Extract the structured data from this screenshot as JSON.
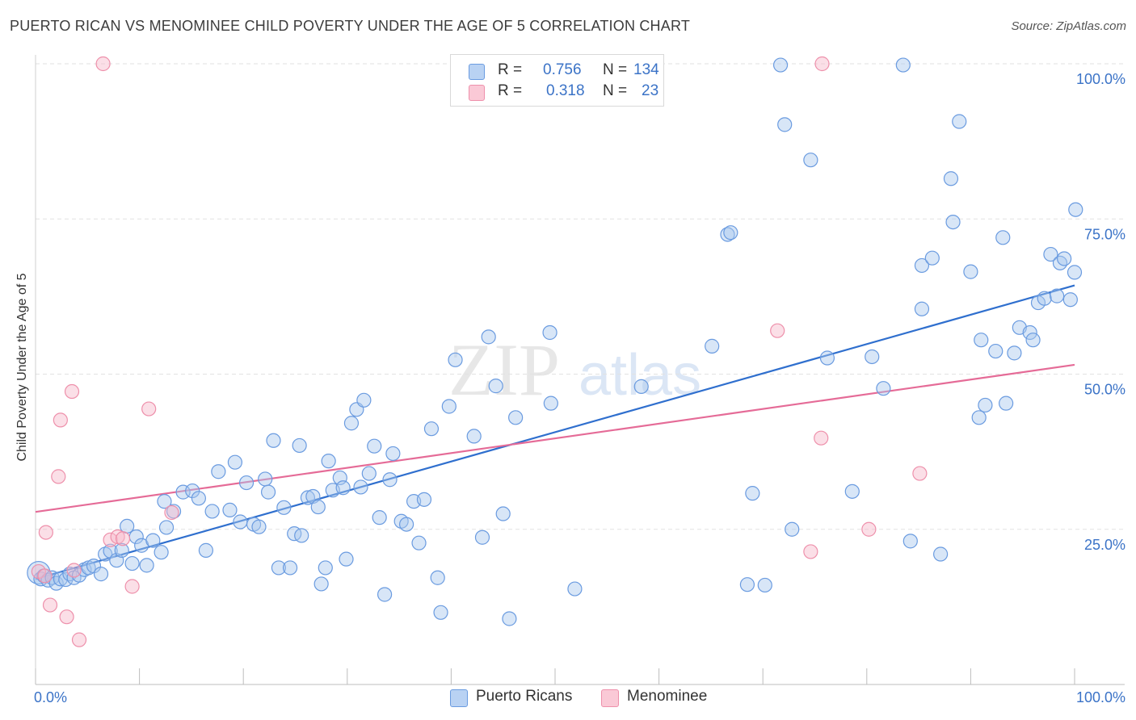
{
  "title": "PUERTO RICAN VS MENOMINEE CHILD POVERTY UNDER THE AGE OF 5 CORRELATION CHART",
  "source": "Source: ZipAtlas.com",
  "watermark": {
    "part1": "ZIP",
    "part2": "atlas"
  },
  "legend": {
    "r_label": "R =",
    "n_label": "N =",
    "series": [
      {
        "name": "Puerto Ricans",
        "r": "0.756",
        "n": "134",
        "color": "#a9c7ee"
      },
      {
        "name": "Menominee",
        "r": "0.318",
        "n": "23",
        "color": "#f6b8c9"
      }
    ]
  },
  "chart_data": {
    "type": "scatter",
    "title": "PUERTO RICAN VS MENOMINEE CHILD POVERTY UNDER THE AGE OF 5 CORRELATION CHART",
    "xlabel": "",
    "ylabel": "Child Poverty Under the Age of 5",
    "xlim": [
      0,
      100
    ],
    "ylim": [
      0,
      100
    ],
    "x_tick_labels": [
      "0.0%",
      "100.0%"
    ],
    "y_tick_labels": [
      "25.0%",
      "50.0%",
      "75.0%",
      "100.0%"
    ],
    "y_ticks": [
      25,
      50,
      75,
      100
    ],
    "grid": true,
    "legend_position": "top-center",
    "colors": {
      "blue_stroke": "#6a9be0",
      "blue_fill": "#a9c7ee",
      "blue_line": "#2f6fce",
      "pink_stroke": "#ee90ab",
      "pink_fill": "#f6b8c9",
      "pink_line": "#e56b97",
      "tick_text": "#3b73c7"
    },
    "series": [
      {
        "name": "Puerto Ricans",
        "r": 0.756,
        "n": 134,
        "trend": {
          "x": [
            0,
            100
          ],
          "y": [
            17.0,
            64.3
          ]
        },
        "points": [
          [
            0.3,
            18.0
          ],
          [
            0.5,
            17.0
          ],
          [
            0.8,
            17.5
          ],
          [
            1.2,
            16.8
          ],
          [
            1.6,
            17.2
          ],
          [
            2.0,
            16.3
          ],
          [
            2.4,
            17.0
          ],
          [
            2.9,
            16.9
          ],
          [
            3.3,
            17.8
          ],
          [
            3.7,
            17.2
          ],
          [
            4.2,
            17.6
          ],
          [
            4.7,
            18.5
          ],
          [
            5.1,
            18.8
          ],
          [
            5.6,
            19.1
          ],
          [
            6.3,
            17.8
          ],
          [
            6.7,
            21.0
          ],
          [
            7.2,
            21.5
          ],
          [
            7.8,
            20.0
          ],
          [
            8.3,
            21.6
          ],
          [
            8.8,
            25.5
          ],
          [
            9.3,
            19.5
          ],
          [
            9.7,
            23.8
          ],
          [
            10.2,
            22.4
          ],
          [
            10.7,
            19.2
          ],
          [
            11.3,
            23.2
          ],
          [
            12.1,
            21.3
          ],
          [
            12.6,
            25.3
          ],
          [
            12.4,
            29.5
          ],
          [
            13.3,
            27.9
          ],
          [
            14.2,
            31.0
          ],
          [
            15.1,
            31.2
          ],
          [
            15.7,
            30.0
          ],
          [
            16.4,
            21.6
          ],
          [
            17.0,
            27.9
          ],
          [
            17.6,
            34.3
          ],
          [
            18.7,
            28.1
          ],
          [
            19.2,
            35.8
          ],
          [
            19.7,
            26.2
          ],
          [
            20.3,
            32.5
          ],
          [
            21.0,
            25.8
          ],
          [
            21.5,
            25.4
          ],
          [
            22.1,
            33.1
          ],
          [
            22.4,
            31.0
          ],
          [
            22.9,
            39.3
          ],
          [
            23.4,
            18.8
          ],
          [
            23.9,
            28.5
          ],
          [
            24.5,
            18.8
          ],
          [
            24.9,
            24.3
          ],
          [
            25.6,
            24.0
          ],
          [
            25.4,
            38.5
          ],
          [
            26.2,
            30.1
          ],
          [
            26.7,
            30.3
          ],
          [
            27.2,
            28.6
          ],
          [
            27.5,
            16.2
          ],
          [
            27.9,
            18.8
          ],
          [
            28.2,
            36.0
          ],
          [
            28.6,
            31.3
          ],
          [
            29.3,
            33.3
          ],
          [
            29.6,
            31.7
          ],
          [
            29.9,
            20.2
          ],
          [
            30.4,
            42.1
          ],
          [
            30.9,
            44.3
          ],
          [
            31.3,
            31.8
          ],
          [
            31.6,
            45.8
          ],
          [
            32.1,
            34.0
          ],
          [
            32.6,
            38.4
          ],
          [
            33.1,
            26.9
          ],
          [
            33.6,
            14.5
          ],
          [
            34.1,
            33.0
          ],
          [
            34.4,
            37.2
          ],
          [
            35.2,
            26.3
          ],
          [
            35.7,
            25.8
          ],
          [
            36.4,
            29.5
          ],
          [
            36.9,
            22.8
          ],
          [
            37.4,
            29.8
          ],
          [
            38.1,
            41.2
          ],
          [
            38.7,
            17.2
          ],
          [
            39.0,
            11.6
          ],
          [
            39.8,
            44.8
          ],
          [
            40.4,
            52.3
          ],
          [
            42.2,
            40.0
          ],
          [
            43.0,
            23.7
          ],
          [
            43.6,
            56.0
          ],
          [
            44.3,
            48.1
          ],
          [
            45.0,
            27.5
          ],
          [
            45.6,
            10.6
          ],
          [
            46.2,
            43.0
          ],
          [
            49.6,
            45.3
          ],
          [
            49.5,
            56.7
          ],
          [
            51.9,
            15.4
          ],
          [
            58.3,
            48.0
          ],
          [
            65.1,
            54.5
          ],
          [
            66.6,
            72.5
          ],
          [
            66.9,
            72.8
          ],
          [
            68.5,
            16.1
          ],
          [
            69.0,
            30.8
          ],
          [
            71.7,
            99.8
          ],
          [
            72.1,
            90.2
          ],
          [
            72.8,
            25.0
          ],
          [
            74.6,
            84.5
          ],
          [
            76.2,
            52.6
          ],
          [
            78.6,
            31.1
          ],
          [
            80.5,
            52.8
          ],
          [
            81.6,
            47.7
          ],
          [
            84.2,
            23.1
          ],
          [
            85.3,
            67.5
          ],
          [
            85.3,
            60.5
          ],
          [
            86.3,
            68.7
          ],
          [
            87.1,
            21.0
          ],
          [
            88.1,
            81.5
          ],
          [
            88.3,
            74.5
          ],
          [
            88.9,
            90.7
          ],
          [
            90.0,
            66.5
          ],
          [
            90.8,
            43.0
          ],
          [
            91.0,
            55.5
          ],
          [
            91.4,
            45.0
          ],
          [
            92.4,
            53.7
          ],
          [
            93.1,
            72.0
          ],
          [
            93.4,
            45.3
          ],
          [
            94.2,
            53.4
          ],
          [
            94.7,
            57.5
          ],
          [
            95.7,
            56.7
          ],
          [
            96.0,
            55.5
          ],
          [
            96.5,
            61.5
          ],
          [
            97.1,
            62.2
          ],
          [
            97.7,
            69.3
          ],
          [
            98.3,
            62.6
          ],
          [
            98.6,
            67.9
          ],
          [
            99.0,
            68.6
          ],
          [
            99.6,
            62.0
          ],
          [
            100.0,
            66.4
          ],
          [
            100.1,
            76.5
          ],
          [
            83.5,
            99.8
          ],
          [
            70.2,
            16.0
          ]
        ]
      },
      {
        "name": "Menominee",
        "r": 0.318,
        "n": 23,
        "trend": {
          "x": [
            0,
            100
          ],
          "y": [
            27.8,
            51.5
          ]
        },
        "points": [
          [
            0.3,
            18.2
          ],
          [
            1.0,
            24.5
          ],
          [
            1.4,
            12.8
          ],
          [
            2.2,
            33.5
          ],
          [
            2.4,
            42.6
          ],
          [
            3.0,
            10.9
          ],
          [
            3.5,
            47.2
          ],
          [
            3.7,
            18.4
          ],
          [
            4.2,
            7.2
          ],
          [
            6.5,
            100.0
          ],
          [
            7.2,
            23.3
          ],
          [
            7.9,
            23.8
          ],
          [
            8.4,
            23.5
          ],
          [
            9.3,
            15.8
          ],
          [
            10.9,
            44.4
          ],
          [
            13.1,
            27.7
          ],
          [
            71.4,
            57.0
          ],
          [
            74.6,
            21.4
          ],
          [
            75.6,
            39.7
          ],
          [
            75.7,
            100.0
          ],
          [
            80.2,
            25.0
          ],
          [
            85.1,
            34.0
          ],
          [
            0.9,
            17.5
          ]
        ]
      }
    ]
  }
}
